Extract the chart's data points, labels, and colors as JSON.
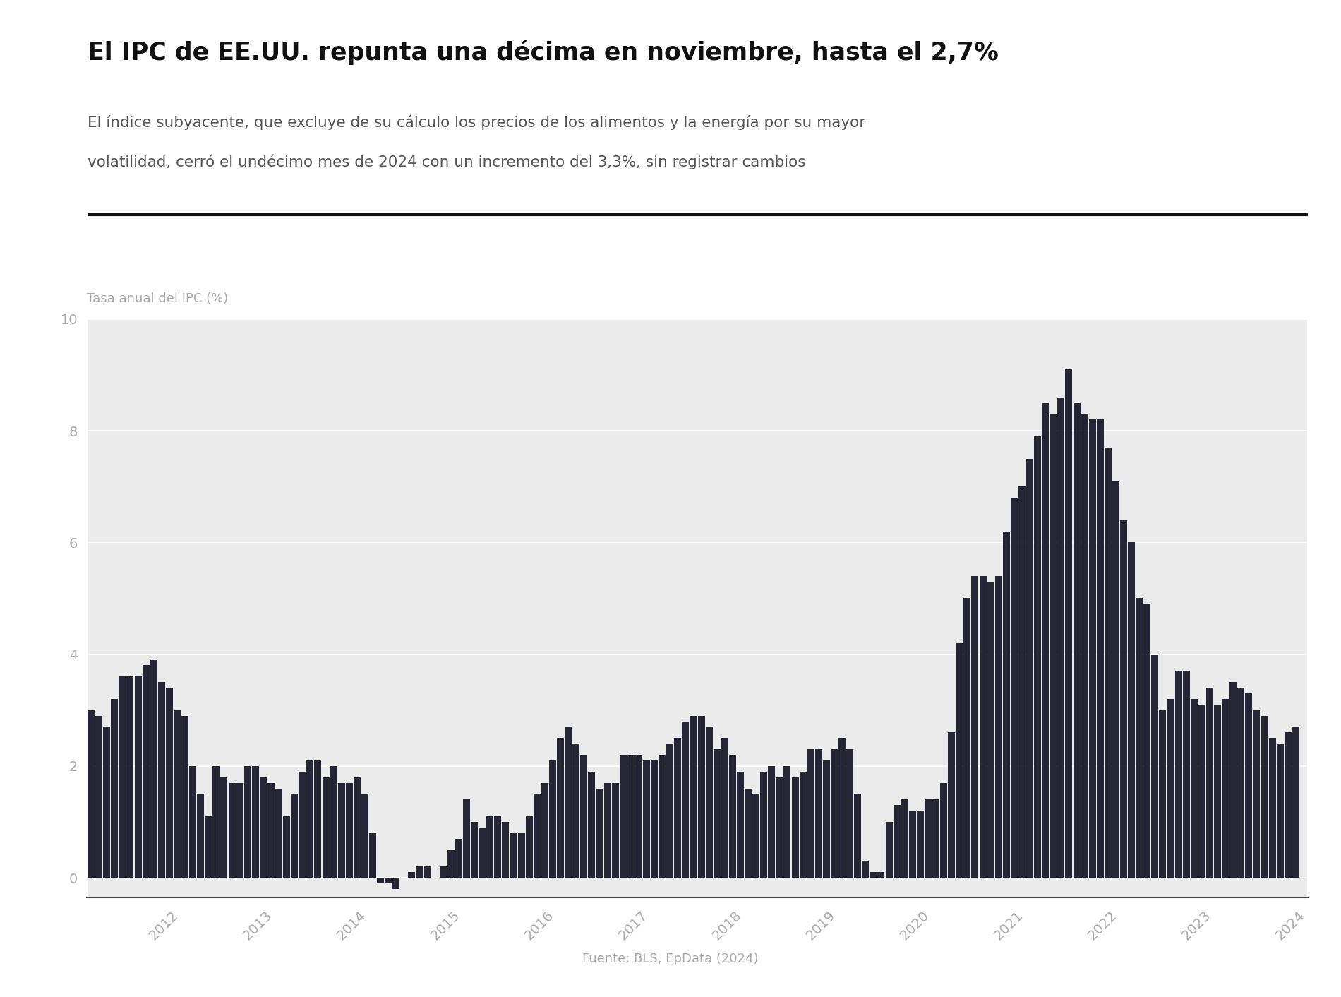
{
  "title": "El IPC de EE.UU. repunta una décima en noviembre, hasta el 2,7%",
  "subtitle_line1": "El índice subyacente, que excluye de su cálculo los precios de los alimentos y la energía por su mayor",
  "subtitle_line2": "volatilidad, cerró el undécimo mes de 2024 con un incremento del 3,3%, sin registrar cambios",
  "ylabel": "Tasa anual del IPC (%)",
  "source": "Fuente: BLS, EpData (2024)",
  "bar_color": "#252535",
  "background_color": "#ebebeb",
  "figure_bg": "#ffffff",
  "title_color": "#111111",
  "subtitle_color": "#555555",
  "axis_label_color": "#aaaaaa",
  "tick_color": "#aaaaaa",
  "grid_color": "#ffffff",
  "separator_color": "#111111",
  "ylim": [
    -0.35,
    10
  ],
  "yticks": [
    0,
    2,
    4,
    6,
    8,
    10
  ],
  "values": [
    3.0,
    2.9,
    2.7,
    3.2,
    3.6,
    3.6,
    3.6,
    3.8,
    3.9,
    3.5,
    3.4,
    3.0,
    2.9,
    2.0,
    1.5,
    1.1,
    2.0,
    1.8,
    1.7,
    1.7,
    2.0,
    2.0,
    1.8,
    1.7,
    1.6,
    1.1,
    1.5,
    1.9,
    2.1,
    2.1,
    1.8,
    2.0,
    1.7,
    1.7,
    1.8,
    1.5,
    0.8,
    -0.1,
    -0.1,
    -0.2,
    0.0,
    0.1,
    0.2,
    0.2,
    0.0,
    0.2,
    0.5,
    0.7,
    1.4,
    1.0,
    0.9,
    1.1,
    1.1,
    1.0,
    0.8,
    0.8,
    1.1,
    1.5,
    1.7,
    2.1,
    2.5,
    2.7,
    2.4,
    2.2,
    1.9,
    1.6,
    1.7,
    1.7,
    2.2,
    2.2,
    2.2,
    2.1,
    2.1,
    2.2,
    2.4,
    2.5,
    2.8,
    2.9,
    2.9,
    2.7,
    2.3,
    2.5,
    2.2,
    1.9,
    1.6,
    1.5,
    1.9,
    2.0,
    1.8,
    2.0,
    1.8,
    1.9,
    2.3,
    2.3,
    2.1,
    2.3,
    2.5,
    2.3,
    1.5,
    0.3,
    0.1,
    0.1,
    1.0,
    1.3,
    1.4,
    1.2,
    1.2,
    1.4,
    1.4,
    1.7,
    2.6,
    4.2,
    5.0,
    5.4,
    5.4,
    5.3,
    5.4,
    6.2,
    6.8,
    7.0,
    7.5,
    7.9,
    8.5,
    8.3,
    8.6,
    9.1,
    8.5,
    8.3,
    8.2,
    8.2,
    7.7,
    7.1,
    6.4,
    6.0,
    5.0,
    4.9,
    4.0,
    3.0,
    3.2,
    3.7,
    3.7,
    3.2,
    3.1,
    3.4,
    3.1,
    3.2,
    3.5,
    3.4,
    3.3,
    3.0,
    2.9,
    2.5,
    2.4,
    2.6,
    2.7
  ],
  "x_tick_years": [
    "2012",
    "2013",
    "2014",
    "2015",
    "2016",
    "2017",
    "2018",
    "2019",
    "2020",
    "2021",
    "2022",
    "2023",
    "2024"
  ],
  "x_tick_month_indices": [
    12,
    24,
    36,
    48,
    60,
    72,
    84,
    96,
    108,
    120,
    132,
    144,
    156
  ]
}
